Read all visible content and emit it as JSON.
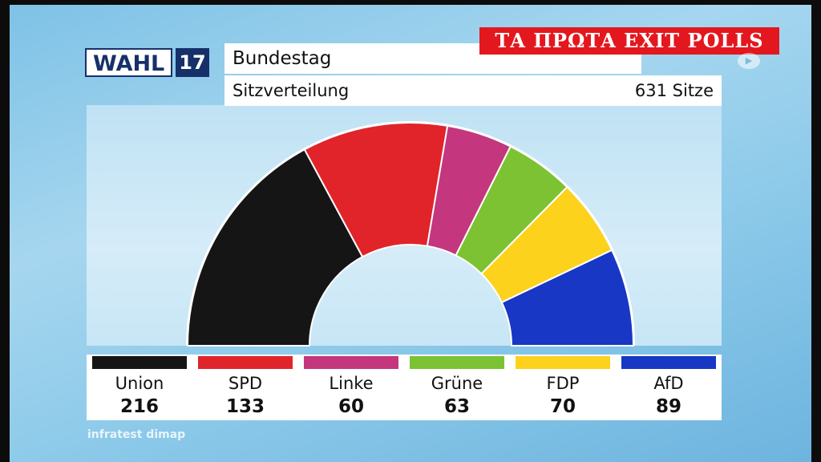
{
  "header": {
    "logo_word": "WAHL",
    "logo_number": "17",
    "title": "Bundestag",
    "subtitle": "Sitzverteilung",
    "total_label": "631 Sitze"
  },
  "banner": "ΤΑ ΠΡΩΤΑ EXIT POLLS",
  "source": "infratest dimap",
  "chart_data": {
    "type": "pie",
    "variant": "half-donut",
    "title": "Sitzverteilung",
    "total": 631,
    "parties": [
      {
        "name": "Union",
        "seats": "216",
        "color": "#151515"
      },
      {
        "name": "SPD",
        "seats": "133",
        "color": "#e0242a"
      },
      {
        "name": "Linke",
        "seats": "60",
        "color": "#c4367e"
      },
      {
        "name": "Grüne",
        "seats": "63",
        "color": "#7cc232"
      },
      {
        "name": "FDP",
        "seats": "70",
        "color": "#fcd21c"
      },
      {
        "name": "AfD",
        "seats": "89",
        "color": "#1737c4"
      }
    ]
  }
}
